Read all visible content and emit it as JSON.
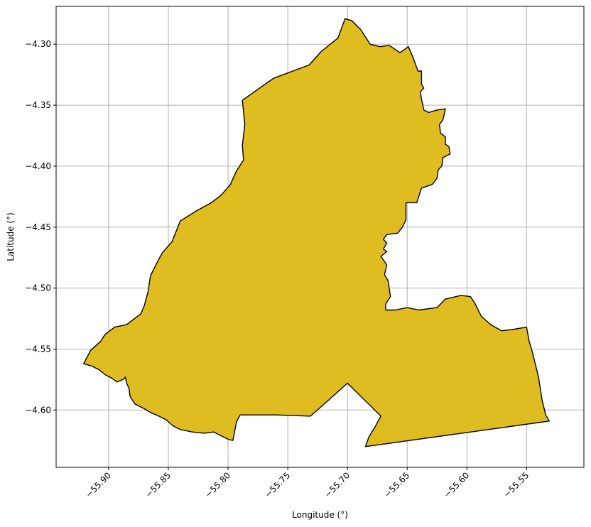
{
  "chart_data": {
    "type": "map",
    "title": "",
    "xlabel": "Longitude (°)",
    "ylabel": "Latitude (°)",
    "xlim": [
      -55.944,
      -55.502
    ],
    "ylim": [
      -4.647,
      -4.269
    ],
    "grid": true,
    "x_ticks": [
      {
        "value": -55.9,
        "label": "−55.90"
      },
      {
        "value": -55.85,
        "label": "−55.85"
      },
      {
        "value": -55.8,
        "label": "−55.80"
      },
      {
        "value": -55.75,
        "label": "−55.75"
      },
      {
        "value": -55.7,
        "label": "−55.70"
      },
      {
        "value": -55.65,
        "label": "−55.65"
      },
      {
        "value": -55.6,
        "label": "−55.60"
      },
      {
        "value": -55.55,
        "label": "−55.55"
      }
    ],
    "y_ticks": [
      {
        "value": -4.3,
        "label": "−4.30"
      },
      {
        "value": -4.35,
        "label": "−4.35"
      },
      {
        "value": -4.4,
        "label": "−4.40"
      },
      {
        "value": -4.45,
        "label": "−4.45"
      },
      {
        "value": -4.5,
        "label": "−4.50"
      },
      {
        "value": -4.55,
        "label": "−4.55"
      },
      {
        "value": -4.6,
        "label": "−4.60"
      }
    ],
    "region": {
      "fill_color": "#dfbd20",
      "edge_color": "#000000",
      "boundary": [
        [
          -55.702,
          -4.279
        ],
        [
          -55.696,
          -4.281
        ],
        [
          -55.689,
          -4.288
        ],
        [
          -55.681,
          -4.3
        ],
        [
          -55.673,
          -4.302
        ],
        [
          -55.665,
          -4.301
        ],
        [
          -55.656,
          -4.307
        ],
        [
          -55.649,
          -4.302
        ],
        [
          -55.645,
          -4.311
        ],
        [
          -55.641,
          -4.322
        ],
        [
          -55.638,
          -4.322
        ],
        [
          -55.638,
          -4.333
        ],
        [
          -55.636,
          -4.336
        ],
        [
          -55.639,
          -4.339
        ],
        [
          -55.638,
          -4.345
        ],
        [
          -55.636,
          -4.354
        ],
        [
          -55.632,
          -4.356
        ],
        [
          -55.625,
          -4.354
        ],
        [
          -55.618,
          -4.353
        ],
        [
          -55.62,
          -4.362
        ],
        [
          -55.623,
          -4.366
        ],
        [
          -55.622,
          -4.373
        ],
        [
          -55.618,
          -4.376
        ],
        [
          -55.618,
          -4.382
        ],
        [
          -55.615,
          -4.384
        ],
        [
          -55.614,
          -4.39
        ],
        [
          -55.62,
          -4.393
        ],
        [
          -55.621,
          -4.4
        ],
        [
          -55.624,
          -4.403
        ],
        [
          -55.625,
          -4.41
        ],
        [
          -55.629,
          -4.415
        ],
        [
          -55.638,
          -4.418
        ],
        [
          -55.642,
          -4.43
        ],
        [
          -55.651,
          -4.43
        ],
        [
          -55.651,
          -4.444
        ],
        [
          -55.654,
          -4.45
        ],
        [
          -55.658,
          -4.455
        ],
        [
          -55.667,
          -4.456
        ],
        [
          -55.67,
          -4.46
        ],
        [
          -55.667,
          -4.463
        ],
        [
          -55.67,
          -4.468
        ],
        [
          -55.667,
          -4.47
        ],
        [
          -55.672,
          -4.474
        ],
        [
          -55.667,
          -4.481
        ],
        [
          -55.669,
          -4.489
        ],
        [
          -55.666,
          -4.494
        ],
        [
          -55.664,
          -4.507
        ],
        [
          -55.668,
          -4.513
        ],
        [
          -55.668,
          -4.518
        ],
        [
          -55.66,
          -4.518
        ],
        [
          -55.65,
          -4.516
        ],
        [
          -55.64,
          -4.518
        ],
        [
          -55.625,
          -4.516
        ],
        [
          -55.618,
          -4.509
        ],
        [
          -55.605,
          -4.506
        ],
        [
          -55.597,
          -4.507
        ],
        [
          -55.593,
          -4.513
        ],
        [
          -55.588,
          -4.523
        ],
        [
          -55.58,
          -4.53
        ],
        [
          -55.571,
          -4.535
        ],
        [
          -55.562,
          -4.534
        ],
        [
          -55.55,
          -4.532
        ],
        [
          -55.548,
          -4.543
        ],
        [
          -55.545,
          -4.553
        ],
        [
          -55.54,
          -4.573
        ],
        [
          -55.537,
          -4.592
        ],
        [
          -55.534,
          -4.604
        ],
        [
          -55.531,
          -4.609
        ],
        [
          -55.685,
          -4.63
        ],
        [
          -55.682,
          -4.622
        ],
        [
          -55.677,
          -4.614
        ],
        [
          -55.672,
          -4.605
        ],
        [
          -55.7,
          -4.578
        ],
        [
          -55.716,
          -4.592
        ],
        [
          -55.731,
          -4.605
        ],
        [
          -55.76,
          -4.604
        ],
        [
          -55.79,
          -4.604
        ],
        [
          -55.793,
          -4.61
        ],
        [
          -55.796,
          -4.625
        ],
        [
          -55.8,
          -4.624
        ],
        [
          -55.808,
          -4.62
        ],
        [
          -55.812,
          -4.618
        ],
        [
          -55.82,
          -4.619
        ],
        [
          -55.83,
          -4.618
        ],
        [
          -55.84,
          -4.616
        ],
        [
          -55.846,
          -4.613
        ],
        [
          -55.852,
          -4.608
        ],
        [
          -55.858,
          -4.605
        ],
        [
          -55.865,
          -4.602
        ],
        [
          -55.87,
          -4.599
        ],
        [
          -55.878,
          -4.595
        ],
        [
          -55.882,
          -4.589
        ],
        [
          -55.883,
          -4.582
        ],
        [
          -55.885,
          -4.578
        ],
        [
          -55.886,
          -4.573
        ],
        [
          -55.888,
          -4.575
        ],
        [
          -55.893,
          -4.577
        ],
        [
          -55.897,
          -4.574
        ],
        [
          -55.903,
          -4.571
        ],
        [
          -55.908,
          -4.567
        ],
        [
          -55.914,
          -4.564
        ],
        [
          -55.921,
          -4.562
        ],
        [
          -55.915,
          -4.551
        ],
        [
          -55.907,
          -4.544
        ],
        [
          -55.903,
          -4.538
        ],
        [
          -55.895,
          -4.532
        ],
        [
          -55.885,
          -4.53
        ],
        [
          -55.873,
          -4.521
        ],
        [
          -55.87,
          -4.514
        ],
        [
          -55.867,
          -4.503
        ],
        [
          -55.865,
          -4.49
        ],
        [
          -55.86,
          -4.48
        ],
        [
          -55.855,
          -4.471
        ],
        [
          -55.847,
          -4.462
        ],
        [
          -55.84,
          -4.445
        ],
        [
          -55.827,
          -4.437
        ],
        [
          -55.814,
          -4.43
        ],
        [
          -55.806,
          -4.424
        ],
        [
          -55.798,
          -4.415
        ],
        [
          -55.793,
          -4.404
        ],
        [
          -55.787,
          -4.395
        ],
        [
          -55.788,
          -4.383
        ],
        [
          -55.786,
          -4.366
        ],
        [
          -55.788,
          -4.346
        ],
        [
          -55.762,
          -4.328
        ],
        [
          -55.732,
          -4.317
        ],
        [
          -55.722,
          -4.306
        ],
        [
          -55.708,
          -4.295
        ]
      ]
    }
  }
}
